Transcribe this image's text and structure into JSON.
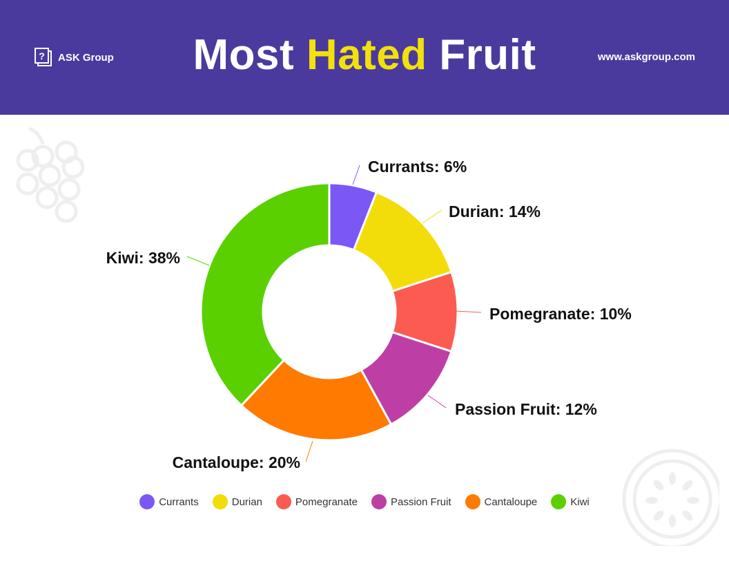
{
  "header": {
    "brand": "ASK Group",
    "title_prefix": "Most ",
    "title_highlight": "Hated",
    "title_suffix": " Fruit",
    "website": "www.askgroup.com",
    "background_color": "#4b3a9e",
    "highlight_color": "#f2e10a"
  },
  "chart_data": {
    "type": "pie",
    "variant": "donut",
    "slices": [
      {
        "label": "Currants",
        "value": 6,
        "color": "#7b57f5",
        "data_label": "Currants: 6%"
      },
      {
        "label": "Durian",
        "value": 14,
        "color": "#f2dd0a",
        "data_label": "Durian: 14%"
      },
      {
        "label": "Pomegranate",
        "value": 10,
        "color": "#fb5b51",
        "data_label": "Pomegranate: 10%"
      },
      {
        "label": "Passion Fruit",
        "value": 12,
        "color": "#bd3fa5",
        "data_label": "Passion Fruit: 12%"
      },
      {
        "label": "Cantaloupe",
        "value": 20,
        "color": "#ff7a00",
        "data_label": "Cantaloupe: 20%"
      },
      {
        "label": "Kiwi",
        "value": 38,
        "color": "#5ad000",
        "data_label": "Kiwi: 38%"
      }
    ],
    "legend_position": "bottom"
  },
  "decorations": {
    "top_left": "grapes-icon",
    "bottom_right": "melon-slice-icon"
  }
}
